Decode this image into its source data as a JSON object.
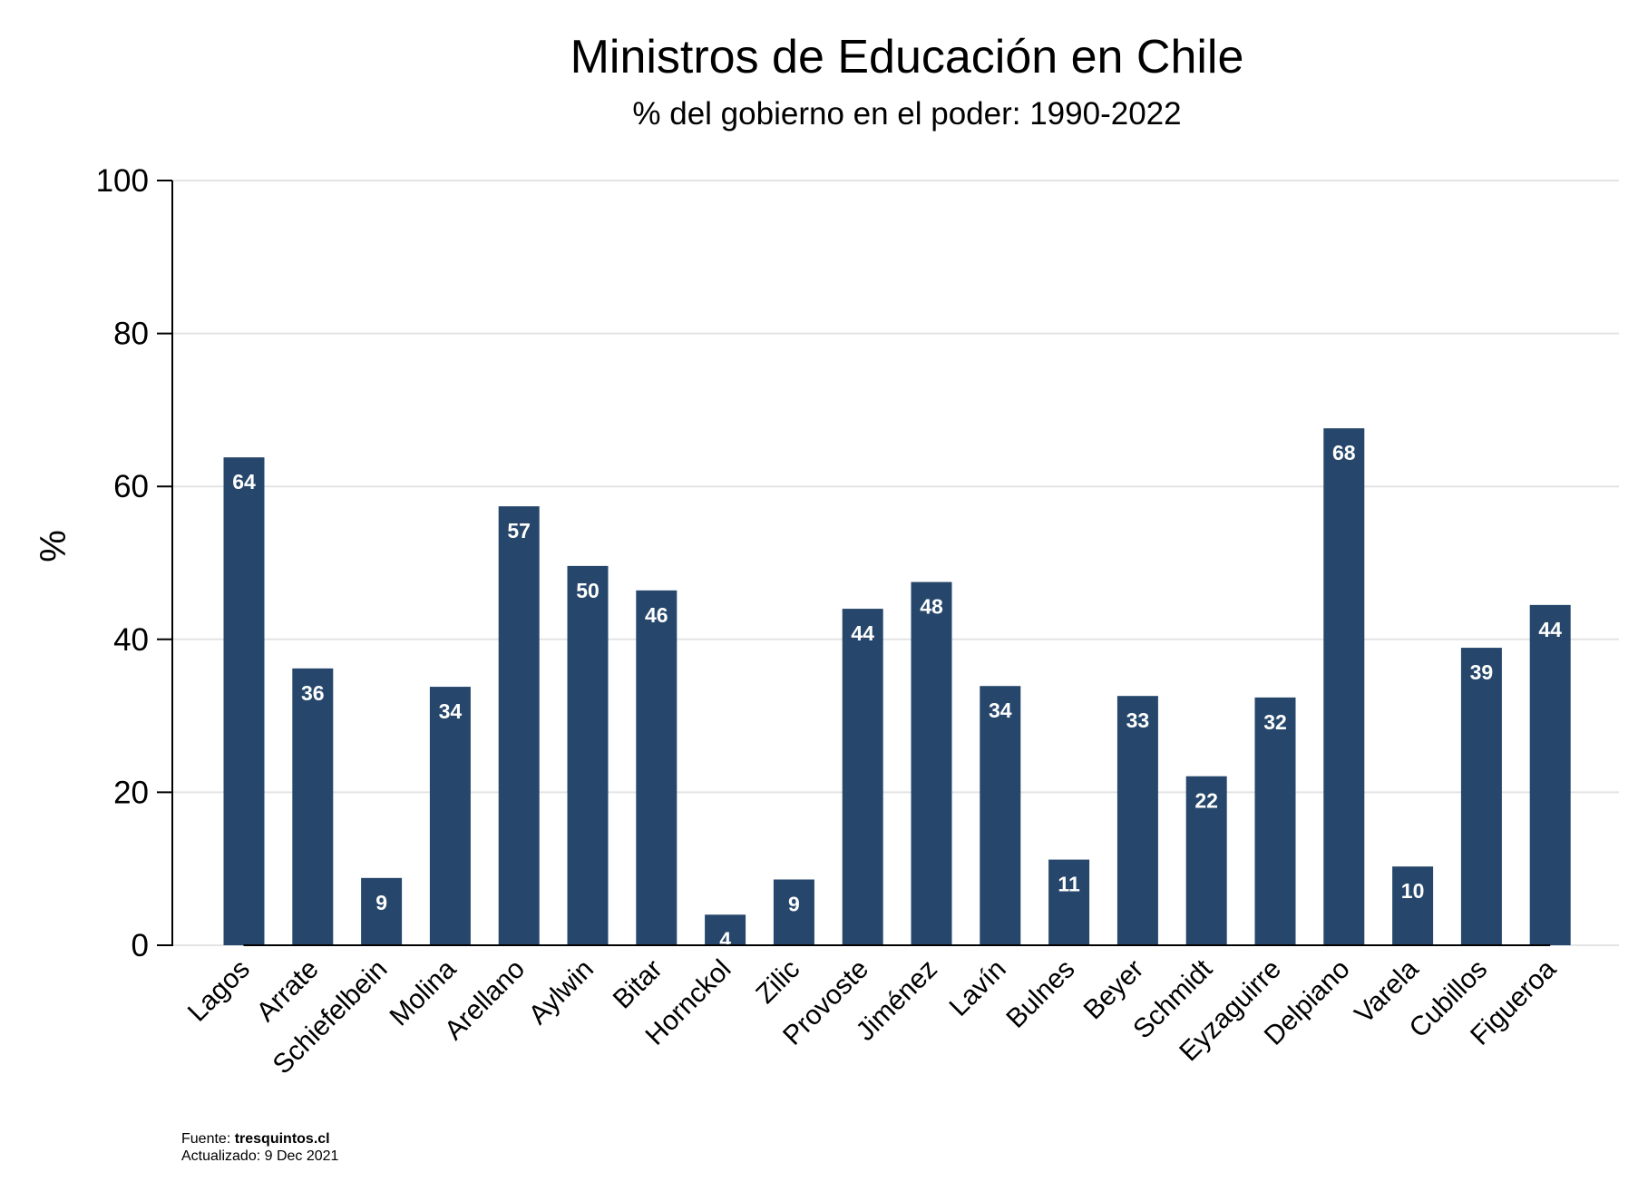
{
  "chart_data": {
    "type": "bar",
    "title": "Ministros de Educación en Chile",
    "subtitle": "% del gobierno en el poder: 1990-2022",
    "xlabel": "",
    "ylabel": "%",
    "ylim": [
      0,
      100
    ],
    "yticks": [
      0,
      20,
      40,
      60,
      80,
      100
    ],
    "grid": true,
    "bar_color": "#26476b",
    "categories": [
      "Lagos",
      "Arrate",
      "Schiefelbein",
      "Molina",
      "Arellano",
      "Aylwin",
      "Bitar",
      "Hornckol",
      "Zilic",
      "Provoste",
      "Jiménez",
      "Lavín",
      "Bulnes",
      "Beyer",
      "Schmidt",
      "Eyzaguirre",
      "Delpiano",
      "Varela",
      "Cubillos",
      "Figueroa"
    ],
    "values": [
      63.8,
      36.2,
      8.8,
      33.8,
      57.4,
      49.6,
      46.4,
      4.0,
      8.6,
      44.0,
      47.5,
      33.9,
      11.2,
      32.6,
      22.1,
      32.4,
      67.6,
      10.3,
      38.9,
      44.5
    ],
    "data_labels": [
      "64",
      "36",
      "9",
      "34",
      "57",
      "50",
      "46",
      "4",
      "9",
      "44",
      "48",
      "34",
      "11",
      "33",
      "22",
      "32",
      "68",
      "10",
      "39",
      "44"
    ]
  },
  "source": {
    "label": "Fuente: ",
    "site": "tresquintos.cl",
    "updated": "Actualizado:  9 Dec 2021"
  }
}
